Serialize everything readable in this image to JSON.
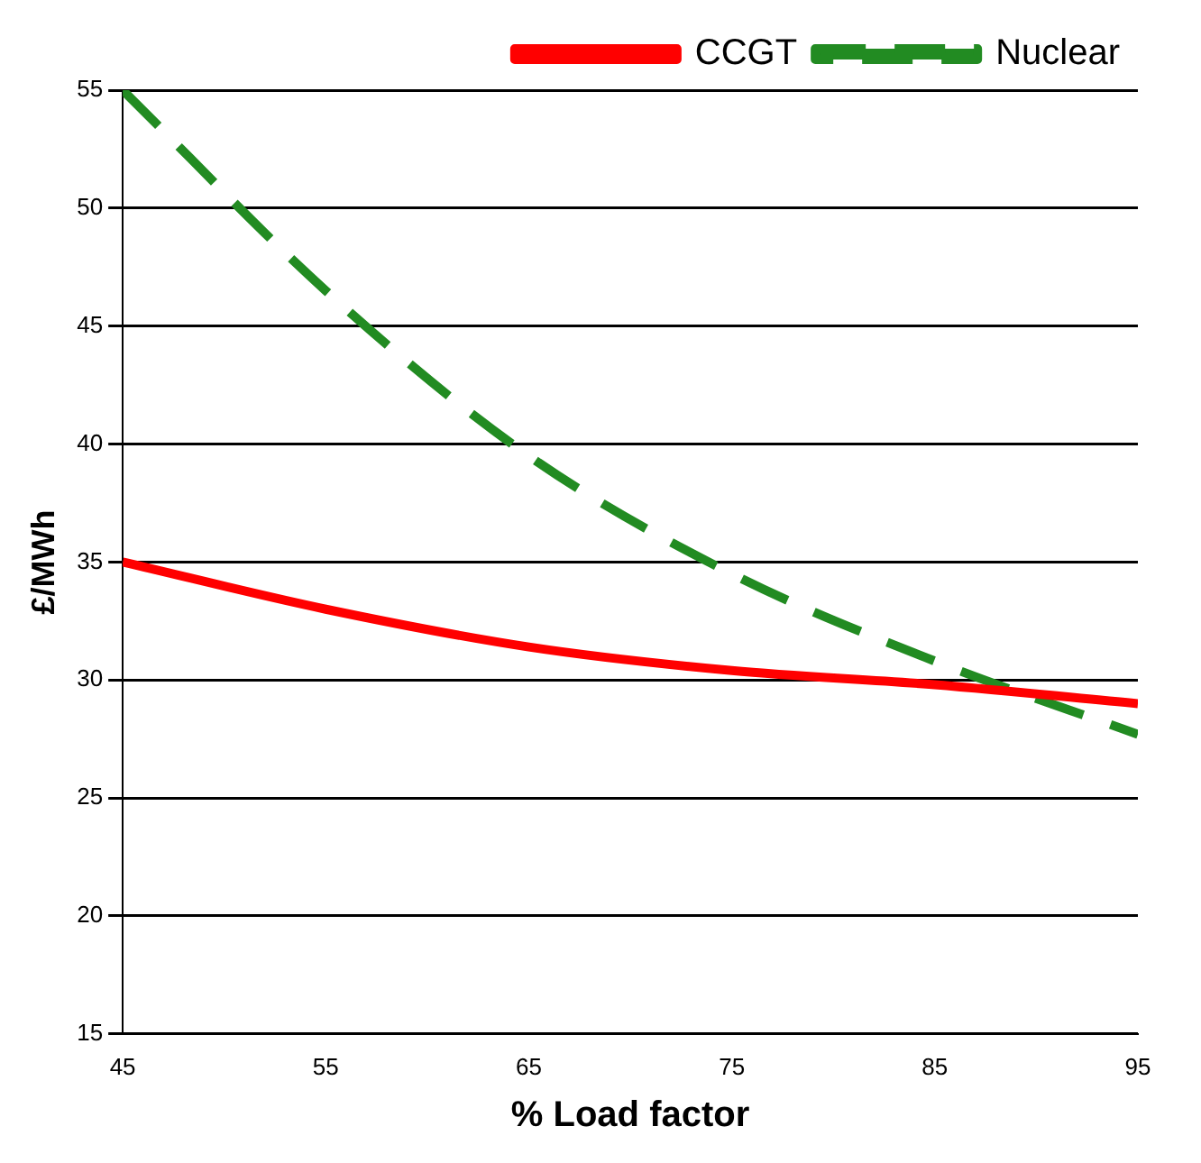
{
  "chart_data": {
    "type": "line",
    "xlabel": "% Load factor",
    "ylabel": "£/MWh",
    "x": [
      45,
      55,
      65,
      75,
      85,
      95
    ],
    "series": [
      {
        "name": "CCGT",
        "color": "#ff0000",
        "line_style": "solid",
        "values": [
          35,
          33,
          31.4,
          30.4,
          29.8,
          29
        ]
      },
      {
        "name": "Nuclear",
        "color": "#228b22",
        "line_style": "dashed",
        "values": [
          55,
          46.5,
          39.5,
          34.5,
          30.8,
          27.7
        ]
      }
    ],
    "xlim": [
      45,
      95
    ],
    "xticks": [
      45,
      55,
      65,
      75,
      85,
      95
    ],
    "ylim": [
      15,
      55
    ],
    "yticks": [
      15,
      20,
      25,
      30,
      35,
      40,
      45,
      50,
      55
    ],
    "grid": "y",
    "legend": "top right",
    "marker": "none"
  }
}
